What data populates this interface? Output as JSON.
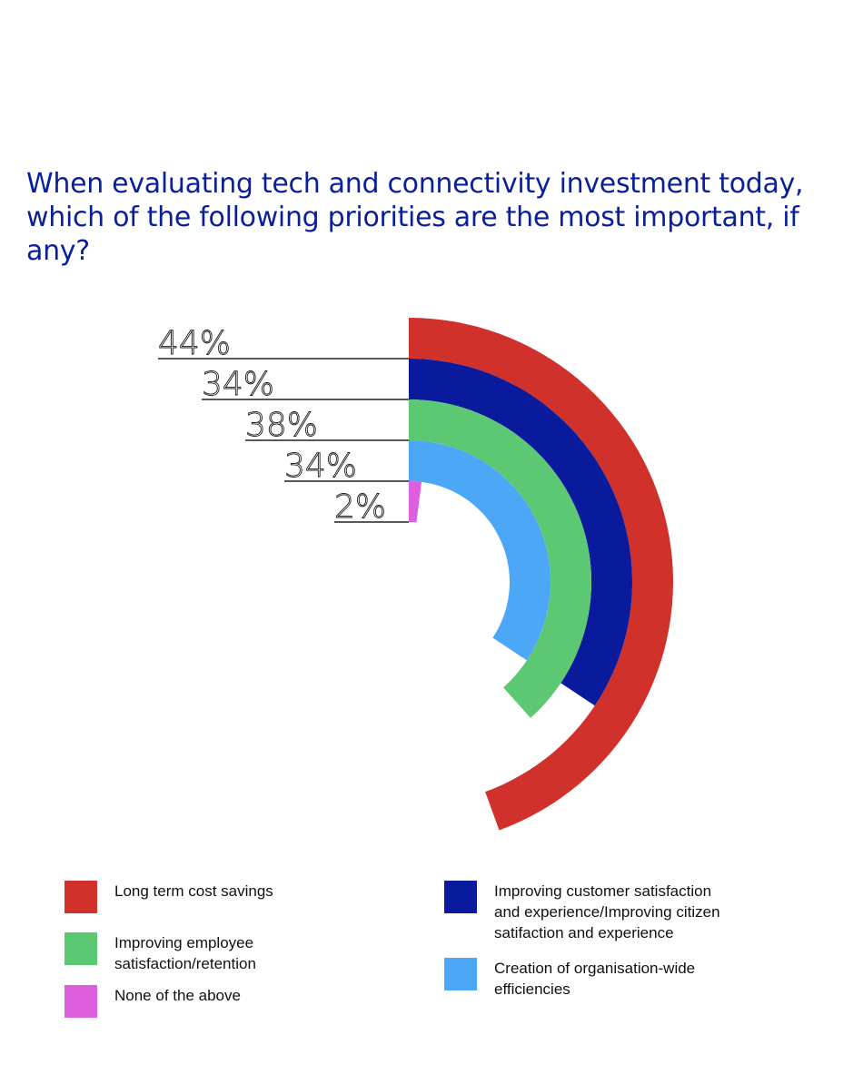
{
  "chart_data": {
    "type": "radial-bar",
    "title": "When evaluating tech and connectivity investment today, which of the following priorities are the most important, if any?",
    "value_suffix": "%",
    "series": [
      {
        "name": "Long term cost savings",
        "value": 44,
        "label": "44%",
        "color": "#d0312a"
      },
      {
        "name": "Improving customer satisfaction and experience/Improving citizen satifaction and experience",
        "value": 34,
        "label": "34%",
        "color": "#0a1a9c"
      },
      {
        "name": "Improving employee satisfaction/retention",
        "value": 38,
        "label": "38%",
        "color": "#5dc873"
      },
      {
        "name": "Creation of organisation-wide efficiencies",
        "value": 34,
        "label": "34%",
        "color": "#4da7f7"
      },
      {
        "name": "None of the above",
        "value": 2,
        "label": "2%",
        "color": "#dd5fdd"
      }
    ],
    "legend": [
      {
        "label_lines": [
          "Long term cost savings"
        ],
        "color": "#d0312a"
      },
      {
        "label_lines": [
          "Improving customer satisfaction",
          "and experience/Improving citizen",
          "satifaction and experience"
        ],
        "color": "#0a1a9c"
      },
      {
        "label_lines": [
          "Improving employee",
          "satisfaction/retention"
        ],
        "color": "#5dc873"
      },
      {
        "label_lines": [
          "Creation of organisation-wide",
          "efficiencies"
        ],
        "color": "#4da7f7"
      },
      {
        "label_lines": [
          "None of the above"
        ],
        "color": "#dd5fdd"
      }
    ]
  }
}
